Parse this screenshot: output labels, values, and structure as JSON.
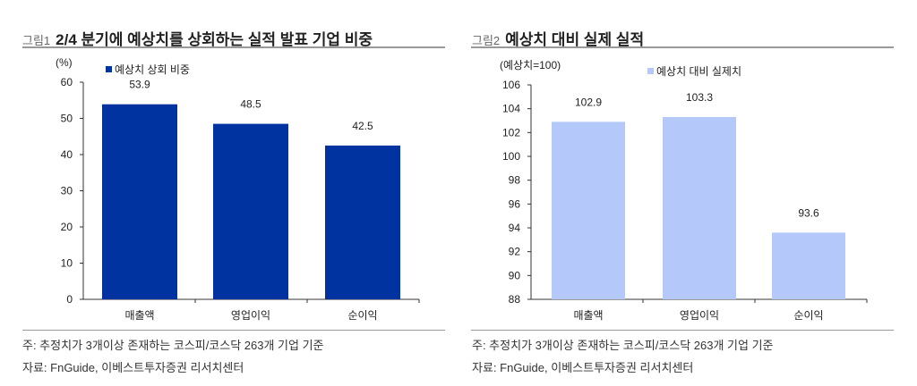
{
  "chart_data": [
    {
      "type": "bar",
      "fig_label": "그림1",
      "title": "2/4 분기에 예상치를 상회하는 실적 발표 기업 비중",
      "ylabel": "(%)",
      "legend": "예상치 상회 비중",
      "legend_position": "top",
      "categories": [
        "매출액",
        "영업이익",
        "순이익"
      ],
      "values": [
        53.9,
        48.5,
        42.5
      ],
      "value_labels": [
        "53.9",
        "48.5",
        "42.5"
      ],
      "ylim": [
        0,
        60
      ],
      "yticks": [
        0,
        10,
        20,
        30,
        40,
        50,
        60
      ],
      "color": "#0033a0",
      "grid": false,
      "note": "주: 추정치가 3개이상 존재하는 코스피/코스닥 263개 기업 기준",
      "source": "자료: FnGuide, 이베스트투자증권 리서치센터"
    },
    {
      "type": "bar",
      "fig_label": "그림2",
      "title": "예상치 대비 실제 실적",
      "ylabel": "(예상치=100)",
      "legend": "예상치 대비 실제치",
      "legend_position": "top",
      "categories": [
        "매출액",
        "영업이익",
        "순이익"
      ],
      "values": [
        102.9,
        103.3,
        93.6
      ],
      "value_labels": [
        "102.9",
        "103.3",
        "93.6"
      ],
      "ylim": [
        88,
        106
      ],
      "yticks": [
        88,
        90,
        92,
        94,
        96,
        98,
        100,
        102,
        104,
        106
      ],
      "color": "#b4c8fa",
      "grid": false,
      "note": "주: 추정치가 3개이상 존재하는 코스피/코스닥 263개 기업 기준",
      "source": "자료: FnGuide, 이베스트투자증권 리서치센터"
    }
  ]
}
